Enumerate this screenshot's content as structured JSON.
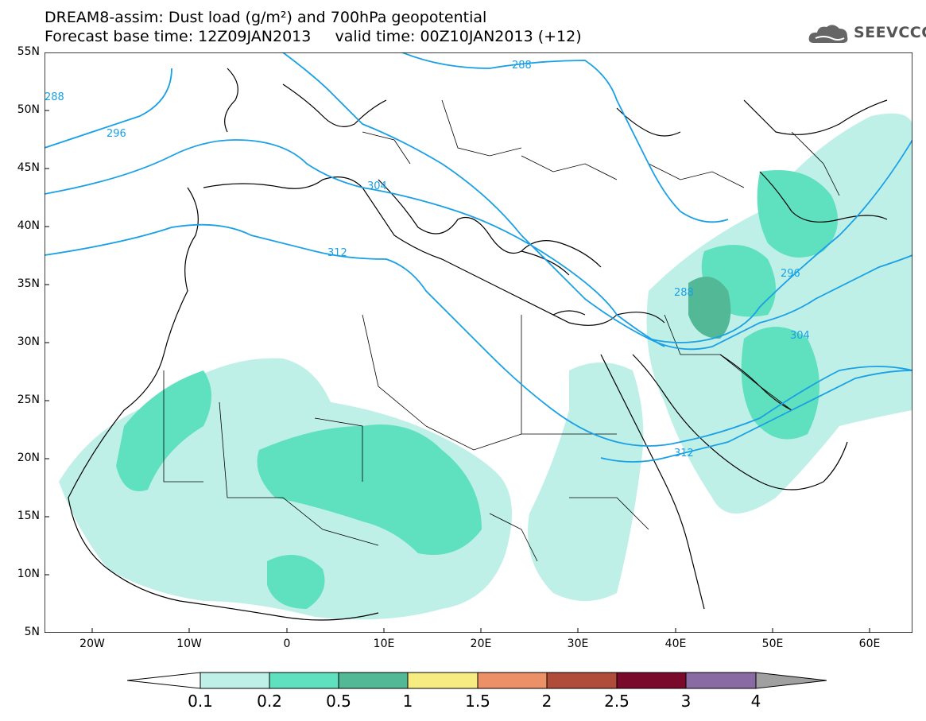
{
  "header": {
    "title_line1": "DREAM8-assim: Dust load (g/m²) and 700hPa geopotential",
    "title_line2": "Forecast base time: 12Z09JAN2013     valid time: 00Z10JAN2013 (+12)",
    "logo_text": "SEEVCCC"
  },
  "map": {
    "y_axis_labels": [
      "55N",
      "50N",
      "45N",
      "40N",
      "35N",
      "30N",
      "25N",
      "20N",
      "15N",
      "10N",
      "5N"
    ],
    "x_axis_labels": [
      "20W",
      "10W",
      "0",
      "10E",
      "20E",
      "30E",
      "40E",
      "50E",
      "60E"
    ],
    "contour_labels": [
      "288",
      "296",
      "304",
      "312",
      "288",
      "288",
      "296",
      "304",
      "312"
    ],
    "contour_color": "#1aa0e6",
    "land_border_color": "#000000"
  },
  "legend": {
    "labels": [
      "0.1",
      "0.2",
      "0.5",
      "1",
      "1.5",
      "2",
      "2.5",
      "3",
      "4"
    ],
    "colors": [
      "#ffffff",
      "#bff0e8",
      "#5fe0be",
      "#52b896",
      "#f6ec82",
      "#ec9068",
      "#b04c3a",
      "#7a0a2c",
      "#8a6aa2",
      "#a0a0a0"
    ]
  }
}
